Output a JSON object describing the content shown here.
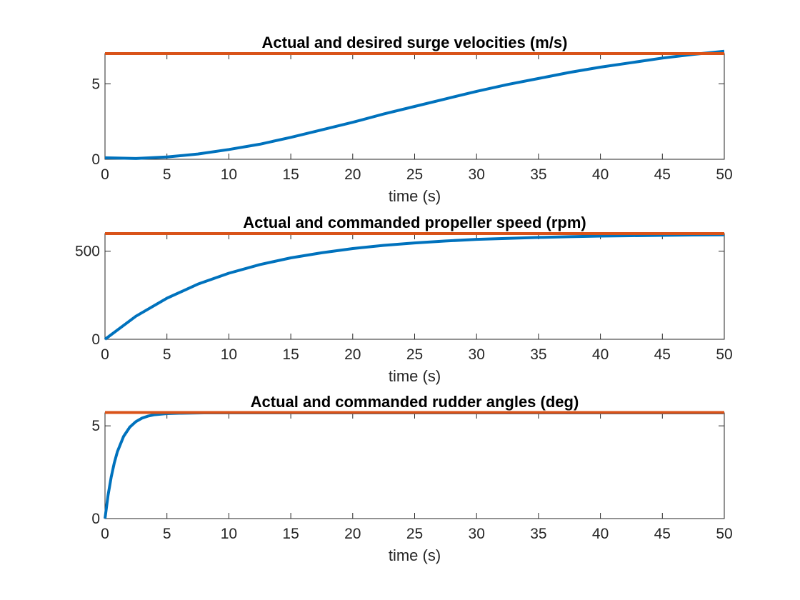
{
  "chart_data": [
    {
      "type": "line",
      "title": "Actual and desired surge velocities (m/s)",
      "xlabel": "time (s)",
      "ylabel": "",
      "xlim": [
        0,
        50
      ],
      "ylim": [
        0,
        7
      ],
      "xticks": [
        0,
        5,
        10,
        15,
        20,
        25,
        30,
        35,
        40,
        45,
        50
      ],
      "yticks": [
        0,
        5
      ],
      "grid": false,
      "legend": "none",
      "series": [
        {
          "color": "#0072BD",
          "x": [
            0,
            2.5,
            5,
            7.5,
            10,
            12.5,
            15,
            17.5,
            20,
            22.5,
            25,
            27.5,
            30,
            32.5,
            35,
            37.5,
            40,
            42.5,
            45,
            47.5,
            50
          ],
          "y": [
            0.1,
            0.05,
            0.15,
            0.35,
            0.65,
            1.0,
            1.45,
            1.95,
            2.45,
            3.0,
            3.5,
            4.0,
            4.5,
            4.95,
            5.35,
            5.75,
            6.1,
            6.4,
            6.7,
            6.95,
            7.15
          ]
        },
        {
          "color": "#D95319",
          "x": [
            0,
            50
          ],
          "y": [
            7.0,
            7.0
          ]
        }
      ]
    },
    {
      "type": "line",
      "title": "Actual and commanded propeller speed (rpm)",
      "xlabel": "time (s)",
      "ylabel": "",
      "xlim": [
        0,
        50
      ],
      "ylim": [
        0,
        600
      ],
      "xticks": [
        0,
        5,
        10,
        15,
        20,
        25,
        30,
        35,
        40,
        45,
        50
      ],
      "yticks": [
        0,
        500
      ],
      "grid": false,
      "legend": "none",
      "series": [
        {
          "color": "#0072BD",
          "x": [
            0,
            2.5,
            5,
            7.5,
            10,
            12.5,
            15,
            17.5,
            20,
            22.5,
            25,
            27.5,
            30,
            32.5,
            35,
            37.5,
            40,
            42.5,
            45,
            47.5,
            50
          ],
          "y": [
            0,
            131,
            233,
            313,
            375,
            424,
            462,
            491,
            515,
            533,
            547,
            558,
            567,
            573,
            578,
            582,
            586,
            588,
            590,
            592,
            593
          ]
        },
        {
          "color": "#D95319",
          "x": [
            0,
            50
          ],
          "y": [
            600,
            600
          ]
        }
      ]
    },
    {
      "type": "line",
      "title": "Actual and commanded rudder angles (deg)",
      "xlabel": "time (s)",
      "ylabel": "",
      "xlim": [
        0,
        50
      ],
      "ylim": [
        0,
        5.7
      ],
      "xticks": [
        0,
        5,
        10,
        15,
        20,
        25,
        30,
        35,
        40,
        45,
        50
      ],
      "yticks": [
        0,
        5
      ],
      "grid": false,
      "legend": "none",
      "series": [
        {
          "color": "#0072BD",
          "x": [
            0,
            0.25,
            0.5,
            0.75,
            1,
            1.5,
            2,
            2.5,
            3,
            3.5,
            4,
            5,
            6,
            8,
            10,
            15,
            20,
            30,
            40,
            50
          ],
          "y": [
            0,
            1.26,
            2.24,
            3.0,
            3.6,
            4.43,
            4.93,
            5.23,
            5.42,
            5.53,
            5.6,
            5.66,
            5.68,
            5.7,
            5.7,
            5.7,
            5.7,
            5.7,
            5.7,
            5.7
          ]
        },
        {
          "color": "#D95319",
          "x": [
            0,
            50
          ],
          "y": [
            5.72,
            5.72
          ]
        }
      ]
    }
  ]
}
